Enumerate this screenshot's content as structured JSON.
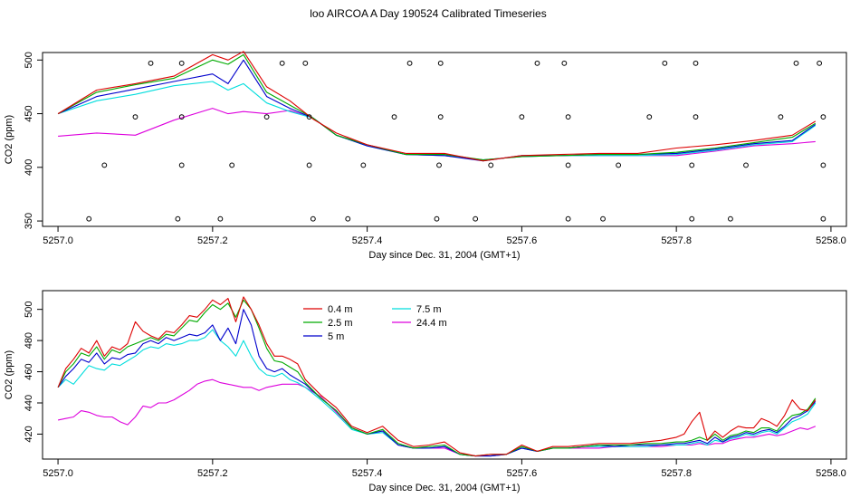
{
  "title": "loo AIRCOA A  Day 190524  Calibrated Timeseries",
  "colors": {
    "s04": "#dd0000",
    "s25": "#00aa00",
    "s5": "#0000cc",
    "s75": "#00dddd",
    "s244": "#dd00dd"
  },
  "chart_data": [
    {
      "type": "line",
      "xlabel": "Day since Dec. 31, 2004 (GMT+1)",
      "ylabel": "CO2 (ppm)",
      "xlim": [
        5256.98,
        5258.02
      ],
      "ylim": [
        345,
        507
      ],
      "xticks": [
        5257.0,
        5257.2,
        5257.4,
        5257.6,
        5257.8,
        5258.0
      ],
      "xtick_labels": [
        "5257.0",
        "5257.2",
        "5257.4",
        "5257.6",
        "5257.8",
        "5258.0"
      ],
      "yticks": [
        350,
        400,
        450,
        500
      ],
      "ytick_labels": [
        "350",
        "400",
        "450",
        "500"
      ],
      "legend": "none",
      "x": [
        5257.0,
        5257.05,
        5257.1,
        5257.15,
        5257.2,
        5257.22,
        5257.24,
        5257.27,
        5257.3,
        5257.33,
        5257.36,
        5257.4,
        5257.45,
        5257.5,
        5257.55,
        5257.6,
        5257.65,
        5257.7,
        5257.75,
        5257.8,
        5257.85,
        5257.9,
        5257.95,
        5257.98
      ],
      "series": [
        {
          "key": "s04",
          "values": [
            450,
            472,
            478,
            485,
            505,
            500,
            508,
            475,
            462,
            445,
            432,
            421,
            413,
            413,
            406,
            411,
            412,
            413,
            413,
            418,
            421,
            425,
            430,
            443
          ]
        },
        {
          "key": "s25",
          "values": [
            450,
            470,
            477,
            483,
            500,
            496,
            505,
            470,
            458,
            446,
            430,
            421,
            412,
            412,
            407,
            410,
            411,
            412,
            412,
            414,
            418,
            423,
            428,
            441
          ]
        },
        {
          "key": "s5",
          "values": [
            450,
            466,
            473,
            480,
            487,
            478,
            500,
            466,
            455,
            446,
            430,
            420,
            412,
            411,
            406,
            411,
            411,
            412,
            412,
            413,
            417,
            422,
            425,
            440
          ]
        },
        {
          "key": "s75",
          "values": [
            450,
            462,
            468,
            476,
            480,
            472,
            478,
            460,
            452,
            446,
            430,
            420,
            412,
            411,
            407,
            410,
            411,
            411,
            411,
            412,
            416,
            421,
            424,
            439
          ]
        },
        {
          "key": "s244",
          "values": [
            429,
            432,
            430,
            444,
            455,
            450,
            452,
            450,
            453,
            446,
            430,
            421,
            412,
            411,
            407,
            410,
            411,
            411,
            411,
            411,
            415,
            420,
            422,
            424
          ]
        }
      ],
      "markers": {
        "x": [
          5257.04,
          5257.06,
          5257.1,
          5257.12,
          5257.155,
          5257.16,
          5257.16,
          5257.16,
          5257.21,
          5257.225,
          5257.27,
          5257.29,
          5257.32,
          5257.325,
          5257.325,
          5257.33,
          5257.375,
          5257.395,
          5257.435,
          5257.455,
          5257.49,
          5257.493,
          5257.495,
          5257.495,
          5257.54,
          5257.56,
          5257.6,
          5257.62,
          5257.655,
          5257.66,
          5257.66,
          5257.66,
          5257.705,
          5257.725,
          5257.765,
          5257.785,
          5257.82,
          5257.82,
          5257.825,
          5257.825,
          5257.87,
          5257.89,
          5257.935,
          5257.955,
          5257.985,
          5257.99,
          5257.99,
          5257.99
        ],
        "y": [
          352,
          402,
          447,
          497,
          352,
          402,
          447,
          497,
          352,
          402,
          447,
          497,
          497,
          402,
          447,
          352,
          352,
          402,
          447,
          497,
          352,
          402,
          447,
          497,
          352,
          402,
          447,
          497,
          497,
          447,
          402,
          352,
          352,
          402,
          447,
          497,
          352,
          402,
          447,
          497,
          352,
          402,
          447,
          497,
          497,
          447,
          402,
          352
        ]
      }
    },
    {
      "type": "line",
      "xlabel": "Day since Dec. 31, 2004 (GMT+1)",
      "ylabel": "CO2 (ppm)",
      "xlim": [
        5256.98,
        5258.02
      ],
      "ylim": [
        404,
        512
      ],
      "xticks": [
        5257.0,
        5257.2,
        5257.4,
        5257.6,
        5257.8,
        5258.0
      ],
      "xtick_labels": [
        "5257.0",
        "5257.2",
        "5257.4",
        "5257.6",
        "5257.8",
        "5258.0"
      ],
      "yticks": [
        420,
        440,
        460,
        480,
        500
      ],
      "ytick_labels": [
        "420",
        "440",
        "460",
        "480",
        "500"
      ],
      "legend": "top-center",
      "legend_entries": [
        {
          "key": "s04",
          "label": "0.4 m"
        },
        {
          "key": "s25",
          "label": "2.5 m"
        },
        {
          "key": "s5",
          "label": "5 m"
        },
        {
          "key": "s75",
          "label": "7.5 m"
        },
        {
          "key": "s244",
          "label": "24.4 m"
        }
      ],
      "x": [
        5257.0,
        5257.01,
        5257.02,
        5257.03,
        5257.04,
        5257.05,
        5257.06,
        5257.07,
        5257.08,
        5257.09,
        5257.1,
        5257.11,
        5257.12,
        5257.13,
        5257.14,
        5257.15,
        5257.16,
        5257.17,
        5257.18,
        5257.19,
        5257.2,
        5257.21,
        5257.22,
        5257.23,
        5257.24,
        5257.25,
        5257.26,
        5257.27,
        5257.28,
        5257.29,
        5257.3,
        5257.31,
        5257.32,
        5257.34,
        5257.36,
        5257.38,
        5257.4,
        5257.42,
        5257.44,
        5257.46,
        5257.48,
        5257.5,
        5257.52,
        5257.54,
        5257.56,
        5257.58,
        5257.6,
        5257.62,
        5257.64,
        5257.66,
        5257.68,
        5257.7,
        5257.72,
        5257.74,
        5257.76,
        5257.78,
        5257.8,
        5257.81,
        5257.82,
        5257.83,
        5257.84,
        5257.85,
        5257.86,
        5257.87,
        5257.88,
        5257.89,
        5257.9,
        5257.91,
        5257.92,
        5257.93,
        5257.94,
        5257.95,
        5257.96,
        5257.97,
        5257.98
      ],
      "series": [
        {
          "key": "s04",
          "values": [
            450,
            462,
            468,
            475,
            472,
            480,
            470,
            476,
            474,
            478,
            492,
            486,
            483,
            481,
            486,
            485,
            490,
            496,
            495,
            500,
            506,
            503,
            507,
            492,
            508,
            500,
            490,
            478,
            470,
            470,
            468,
            465,
            455,
            445,
            437,
            425,
            421,
            425,
            416,
            412,
            413,
            415,
            408,
            406,
            407,
            407,
            413,
            409,
            412,
            412,
            413,
            414,
            414,
            414,
            415,
            416,
            418,
            420,
            428,
            434,
            416,
            422,
            418,
            422,
            425,
            424,
            424,
            430,
            428,
            425,
            432,
            442,
            436,
            435,
            442
          ]
        },
        {
          "key": "s25",
          "values": [
            450,
            460,
            465,
            472,
            470,
            476,
            468,
            474,
            472,
            476,
            478,
            480,
            482,
            480,
            484,
            483,
            488,
            493,
            492,
            498,
            503,
            500,
            504,
            495,
            506,
            500,
            488,
            475,
            467,
            466,
            463,
            460,
            453,
            443,
            435,
            424,
            420,
            423,
            414,
            411,
            412,
            413,
            407,
            406,
            407,
            407,
            412,
            409,
            411,
            411,
            412,
            413,
            413,
            413,
            414,
            414,
            415,
            415,
            416,
            418,
            416,
            420,
            416,
            419,
            420,
            422,
            421,
            424,
            424,
            422,
            428,
            432,
            433,
            436,
            443
          ]
        },
        {
          "key": "s5",
          "values": [
            450,
            457,
            462,
            468,
            466,
            472,
            465,
            469,
            468,
            471,
            472,
            478,
            480,
            478,
            482,
            480,
            482,
            484,
            483,
            485,
            490,
            480,
            488,
            478,
            500,
            490,
            470,
            462,
            460,
            462,
            458,
            455,
            452,
            443,
            435,
            424,
            420,
            422,
            413,
            411,
            411,
            412,
            407,
            406,
            406,
            407,
            411,
            409,
            411,
            411,
            412,
            413,
            412,
            413,
            413,
            413,
            414,
            414,
            415,
            416,
            414,
            418,
            415,
            418,
            419,
            421,
            420,
            422,
            423,
            421,
            425,
            430,
            432,
            435,
            441
          ]
        },
        {
          "key": "s75",
          "values": [
            450,
            455,
            452,
            458,
            464,
            462,
            461,
            465,
            464,
            467,
            470,
            474,
            476,
            475,
            478,
            477,
            478,
            480,
            480,
            482,
            487,
            480,
            476,
            470,
            480,
            470,
            462,
            458,
            457,
            459,
            455,
            453,
            450,
            442,
            433,
            423,
            420,
            421,
            413,
            411,
            411,
            412,
            407,
            406,
            406,
            407,
            411,
            409,
            411,
            411,
            412,
            412,
            412,
            412,
            412,
            413,
            413,
            413,
            414,
            415,
            413,
            416,
            415,
            417,
            418,
            420,
            419,
            421,
            422,
            420,
            424,
            428,
            430,
            433,
            440
          ]
        },
        {
          "key": "s244",
          "values": [
            429,
            430,
            431,
            435,
            434,
            432,
            431,
            431,
            428,
            426,
            431,
            438,
            437,
            440,
            440,
            442,
            445,
            448,
            452,
            454,
            455,
            453,
            452,
            451,
            450,
            450,
            448,
            450,
            451,
            452,
            452,
            452,
            450,
            444,
            434,
            424,
            420,
            422,
            413,
            411,
            411,
            411,
            407,
            406,
            406,
            407,
            411,
            409,
            411,
            411,
            411,
            411,
            412,
            412,
            412,
            412,
            413,
            413,
            413,
            414,
            413,
            414,
            414,
            416,
            417,
            418,
            418,
            419,
            420,
            419,
            420,
            422,
            424,
            423,
            425
          ]
        }
      ]
    }
  ]
}
